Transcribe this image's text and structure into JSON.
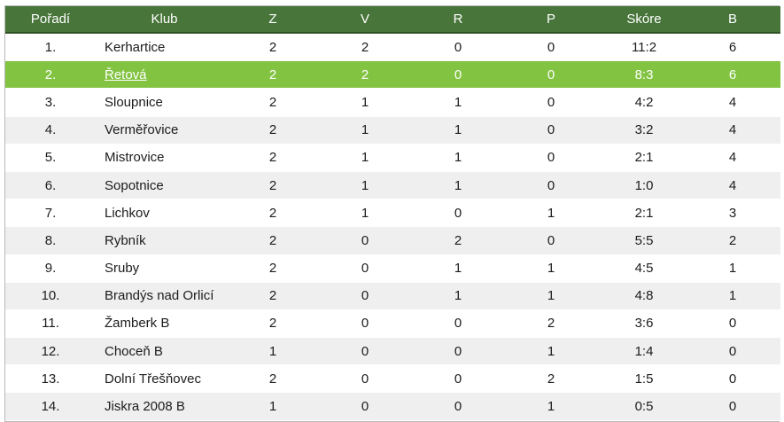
{
  "table": {
    "headers": {
      "rank": "Pořadí",
      "club": "Klub",
      "z": "Z",
      "v": "V",
      "r": "R",
      "p": "P",
      "score": "Skóre",
      "b": "B"
    },
    "rows": [
      {
        "rank": "1.",
        "club": "Kerhartice",
        "z": "2",
        "v": "2",
        "r": "0",
        "p": "0",
        "score": "11:2",
        "b": "6"
      },
      {
        "rank": "2.",
        "club": "Řetová",
        "z": "2",
        "v": "2",
        "r": "0",
        "p": "0",
        "score": "8:3",
        "b": "6"
      },
      {
        "rank": "3.",
        "club": "Sloupnice",
        "z": "2",
        "v": "1",
        "r": "1",
        "p": "0",
        "score": "4:2",
        "b": "4"
      },
      {
        "rank": "4.",
        "club": "Verměřovice",
        "z": "2",
        "v": "1",
        "r": "1",
        "p": "0",
        "score": "3:2",
        "b": "4"
      },
      {
        "rank": "5.",
        "club": "Mistrovice",
        "z": "2",
        "v": "1",
        "r": "1",
        "p": "0",
        "score": "2:1",
        "b": "4"
      },
      {
        "rank": "6.",
        "club": "Sopotnice",
        "z": "2",
        "v": "1",
        "r": "1",
        "p": "0",
        "score": "1:0",
        "b": "4"
      },
      {
        "rank": "7.",
        "club": "Lichkov",
        "z": "2",
        "v": "1",
        "r": "0",
        "p": "1",
        "score": "2:1",
        "b": "3"
      },
      {
        "rank": "8.",
        "club": "Rybník",
        "z": "2",
        "v": "0",
        "r": "2",
        "p": "0",
        "score": "5:5",
        "b": "2"
      },
      {
        "rank": "9.",
        "club": "Sruby",
        "z": "2",
        "v": "0",
        "r": "1",
        "p": "1",
        "score": "4:5",
        "b": "1"
      },
      {
        "rank": "10.",
        "club": "Brandýs nad Orlicí",
        "z": "2",
        "v": "0",
        "r": "1",
        "p": "1",
        "score": "4:8",
        "b": "1"
      },
      {
        "rank": "11.",
        "club": "Žamberk B",
        "z": "2",
        "v": "0",
        "r": "0",
        "p": "2",
        "score": "3:6",
        "b": "0"
      },
      {
        "rank": "12.",
        "club": "Choceň B",
        "z": "1",
        "v": "0",
        "r": "0",
        "p": "1",
        "score": "1:4",
        "b": "0"
      },
      {
        "rank": "13.",
        "club": "Dolní Třešňovec",
        "z": "2",
        "v": "0",
        "r": "0",
        "p": "2",
        "score": "1:5",
        "b": "0"
      },
      {
        "rank": "14.",
        "club": "Jiskra 2008 B",
        "z": "1",
        "v": "0",
        "r": "0",
        "p": "1",
        "score": "0:5",
        "b": "0"
      }
    ]
  },
  "colors": {
    "header_bg": "#48753a",
    "highlight_bg": "#82c341",
    "alt_row_bg": "#efefef"
  }
}
